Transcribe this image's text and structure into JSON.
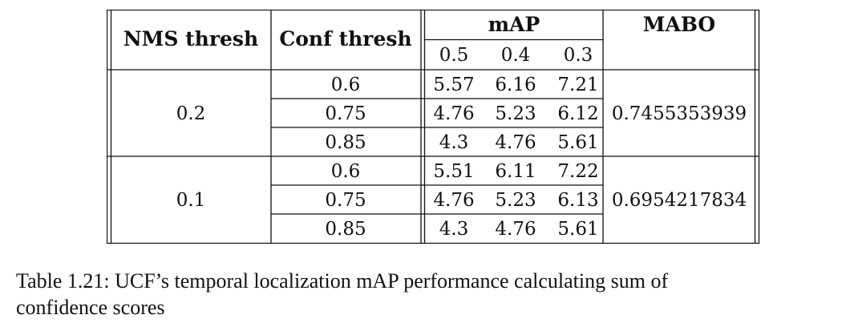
{
  "table": {
    "headers": {
      "nms": "NMS thresh",
      "conf": "Conf thresh",
      "map": "mAP",
      "mabo": "MABO",
      "iou": [
        "0.5",
        "0.4",
        "0.3"
      ]
    },
    "groups": [
      {
        "nms": "0.2",
        "mabo": "0.7455353939",
        "rows": [
          {
            "conf": "0.6",
            "map": [
              "5.57",
              "6.16",
              "7.21"
            ]
          },
          {
            "conf": "0.75",
            "map": [
              "4.76",
              "5.23",
              "6.12"
            ]
          },
          {
            "conf": "0.85",
            "map": [
              "4.3",
              "4.76",
              "5.61"
            ]
          }
        ]
      },
      {
        "nms": "0.1",
        "mabo": "0.6954217834",
        "rows": [
          {
            "conf": "0.6",
            "map": [
              "5.51",
              "6.11",
              "7.22"
            ]
          },
          {
            "conf": "0.75",
            "map": [
              "4.76",
              "5.23",
              "6.13"
            ]
          },
          {
            "conf": "0.85",
            "map": [
              "4.3",
              "4.76",
              "5.61"
            ]
          }
        ]
      }
    ]
  },
  "caption": {
    "line1": "Table 1.21: UCF’s temporal localization mAP performance calculating sum of",
    "line2": "confidence scores"
  }
}
